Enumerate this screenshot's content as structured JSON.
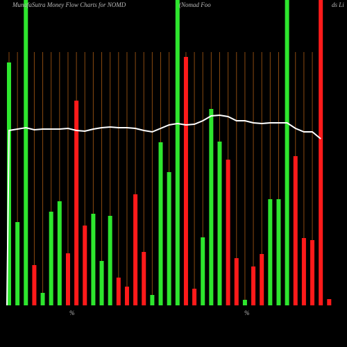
{
  "chart_data": {
    "type": "bar",
    "title": "MunafaSutra  Money Flow  Charts for NOMD",
    "subtitle": [
      "(Nomad Foo",
      "ds Li"
    ],
    "categories": [
      null,
      null,
      null,
      null,
      null,
      null,
      null,
      null,
      null,
      null,
      null,
      null,
      null,
      null,
      null,
      null,
      null,
      null,
      null,
      null,
      null,
      null,
      null,
      null,
      null,
      null,
      null,
      null,
      null,
      null,
      null,
      null,
      null,
      null,
      null,
      null,
      null,
      null
    ],
    "values": [
      350,
      120,
      440,
      58,
      18,
      135,
      150,
      75,
      295,
      115,
      132,
      64,
      129,
      40,
      27,
      160,
      77,
      15,
      235,
      192,
      440,
      358,
      24,
      98,
      283,
      236,
      210,
      68,
      8,
      56,
      74,
      153,
      153,
      440,
      215,
      97,
      94,
      440
    ],
    "colors": [
      "#2ee62e",
      "#2ee62e",
      "#2ee62e",
      "#ff1a1a",
      "#2ee62e",
      "#2ee62e",
      "#2ee62e",
      "#ff1a1a",
      "#ff1a1a",
      "#ff1a1a",
      "#2ee62e",
      "#2ee62e",
      "#2ee62e",
      "#ff1a1a",
      "#ff1a1a",
      "#ff1a1a",
      "#ff1a1a",
      "#2ee62e",
      "#2ee62e",
      "#2ee62e",
      "#2ee62e",
      "#ff1a1a",
      "#ff1a1a",
      "#2ee62e",
      "#2ee62e",
      "#2ee62e",
      "#ff1a1a",
      "#ff1a1a",
      "#2ee62e",
      "#ff1a1a",
      "#ff1a1a",
      "#2ee62e",
      "#2ee62e",
      "#2ee62e",
      "#ff1a1a",
      "#ff1a1a",
      "#ff1a1a",
      "#ff1a1a"
    ],
    "last_value": 9,
    "last_color": "#ff1a1a",
    "flow_line": {
      "color": "#ffffff",
      "values": [
        252,
        254,
        256,
        253,
        254,
        254,
        254,
        255,
        252,
        251,
        254,
        256,
        257,
        256,
        256,
        255,
        252,
        250,
        255,
        260,
        262,
        260,
        261,
        266,
        273,
        274,
        272,
        266,
        266,
        263,
        262,
        263,
        263,
        263,
        255,
        250,
        250,
        240
      ]
    },
    "ylim": [
      0,
      440
    ],
    "annotations": [
      "%",
      "%"
    ]
  }
}
